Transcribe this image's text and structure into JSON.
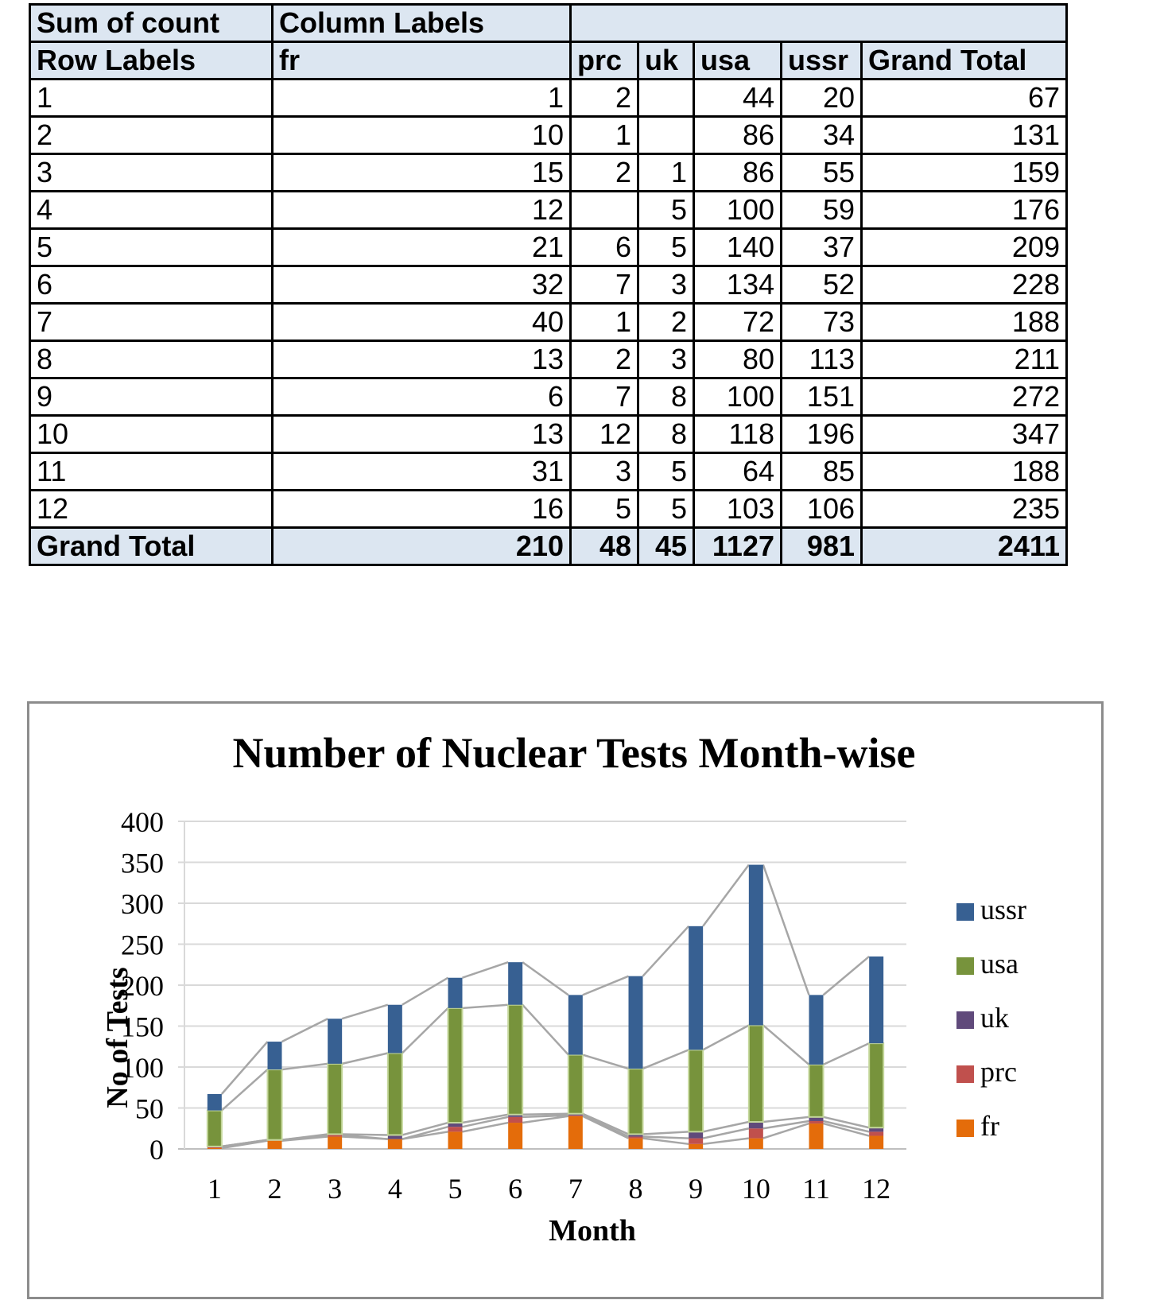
{
  "pivot": {
    "corner_label": "Sum of count",
    "column_labels_label": "Column Labels",
    "row_labels_label": "Row Labels",
    "columns": [
      "fr",
      "prc",
      "uk",
      "usa",
      "ussr",
      "Grand Total"
    ],
    "rows": [
      {
        "label": "1",
        "values": [
          "1",
          "2",
          "",
          "44",
          "20",
          "67"
        ]
      },
      {
        "label": "2",
        "values": [
          "10",
          "1",
          "",
          "86",
          "34",
          "131"
        ]
      },
      {
        "label": "3",
        "values": [
          "15",
          "2",
          "1",
          "86",
          "55",
          "159"
        ]
      },
      {
        "label": "4",
        "values": [
          "12",
          "",
          "5",
          "100",
          "59",
          "176"
        ]
      },
      {
        "label": "5",
        "values": [
          "21",
          "6",
          "5",
          "140",
          "37",
          "209"
        ]
      },
      {
        "label": "6",
        "values": [
          "32",
          "7",
          "3",
          "134",
          "52",
          "228"
        ]
      },
      {
        "label": "7",
        "values": [
          "40",
          "1",
          "2",
          "72",
          "73",
          "188"
        ]
      },
      {
        "label": "8",
        "values": [
          "13",
          "2",
          "3",
          "80",
          "113",
          "211"
        ]
      },
      {
        "label": "9",
        "values": [
          "6",
          "7",
          "8",
          "100",
          "151",
          "272"
        ]
      },
      {
        "label": "10",
        "values": [
          "13",
          "12",
          "8",
          "118",
          "196",
          "347"
        ]
      },
      {
        "label": "11",
        "values": [
          "31",
          "3",
          "5",
          "64",
          "85",
          "188"
        ]
      },
      {
        "label": "12",
        "values": [
          "16",
          "5",
          "5",
          "103",
          "106",
          "235"
        ]
      }
    ],
    "grand_total": {
      "label": "Grand Total",
      "values": [
        "210",
        "48",
        "45",
        "1127",
        "981",
        "2411"
      ]
    }
  },
  "chart_data": {
    "type": "bar",
    "stacked": true,
    "title": "Number of Nuclear Tests Month-wise",
    "xlabel": "Month",
    "ylabel": "No of Tests",
    "categories": [
      "1",
      "2",
      "3",
      "4",
      "5",
      "6",
      "7",
      "8",
      "9",
      "10",
      "11",
      "12"
    ],
    "ylim": [
      0,
      400
    ],
    "yticks": [
      0,
      50,
      100,
      150,
      200,
      250,
      300,
      350,
      400
    ],
    "grid": true,
    "series_lines": true,
    "legend_position": "right",
    "series": [
      {
        "name": "fr",
        "color": "#e46c0a",
        "values": [
          1,
          10,
          15,
          12,
          21,
          32,
          40,
          13,
          6,
          13,
          31,
          16
        ]
      },
      {
        "name": "prc",
        "color": "#c0504d",
        "values": [
          2,
          1,
          2,
          0,
          6,
          7,
          1,
          2,
          7,
          12,
          3,
          5
        ]
      },
      {
        "name": "uk",
        "color": "#604a7b",
        "values": [
          0,
          0,
          1,
          5,
          5,
          3,
          2,
          3,
          8,
          8,
          5,
          5
        ]
      },
      {
        "name": "usa",
        "color": "#77933c",
        "values": [
          44,
          86,
          86,
          100,
          140,
          134,
          72,
          80,
          100,
          118,
          64,
          103
        ]
      },
      {
        "name": "ussr",
        "color": "#376092",
        "values": [
          20,
          34,
          55,
          59,
          37,
          52,
          73,
          113,
          151,
          196,
          85,
          106
        ]
      }
    ]
  }
}
